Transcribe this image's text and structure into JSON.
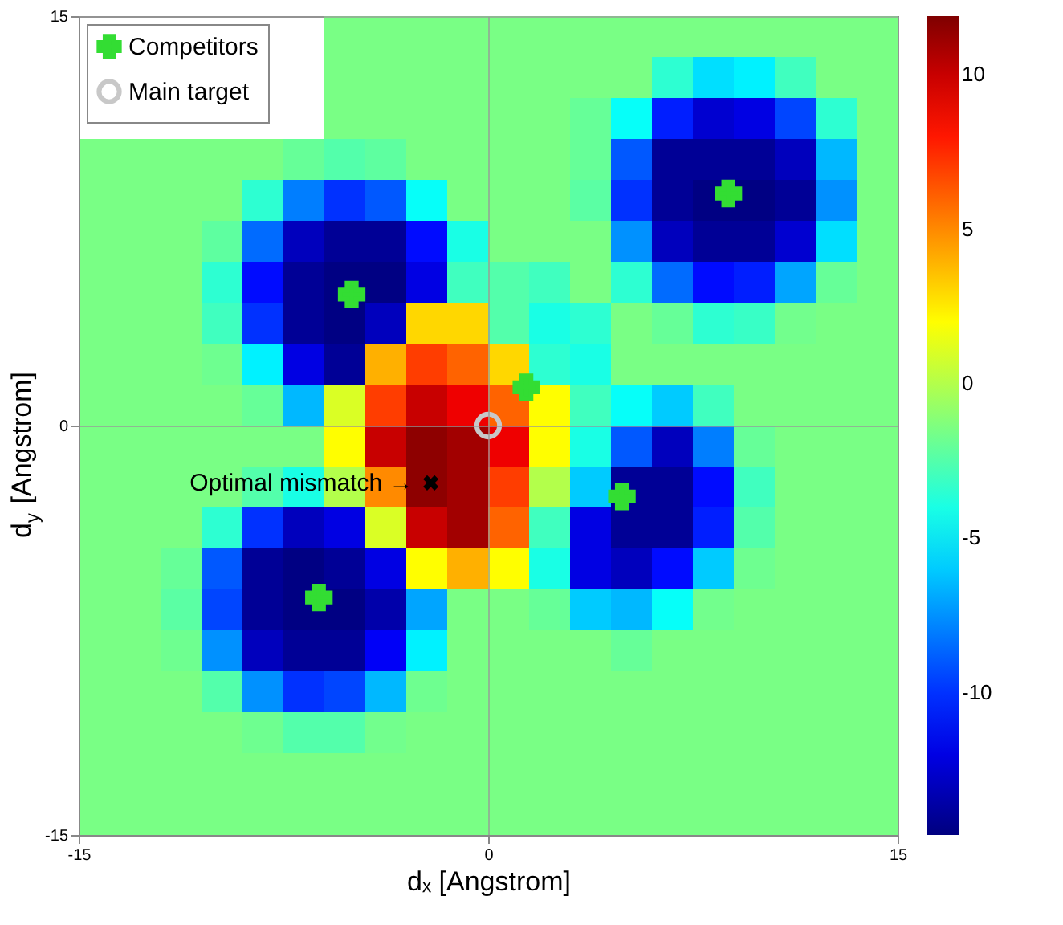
{
  "chart_data": {
    "type": "heatmap",
    "xlabel": "dₓ [Angstrom]",
    "ylabel": "d$_{y}$ [Angstrom]",
    "xlim": [
      -15,
      15
    ],
    "ylim": [
      -15,
      15
    ],
    "xticks": [
      -15,
      0,
      15
    ],
    "yticks": [
      -15,
      0,
      15
    ],
    "grid": true,
    "clim": [
      -14.6,
      11.9
    ],
    "cticks": [
      -10,
      -5,
      0,
      5,
      10
    ],
    "cells": [
      [
        null,
        null,
        null,
        null,
        null,
        null,
        -1.5,
        -1.5,
        -1.5,
        -1.5,
        -1.5,
        -1.5,
        -1.5,
        -1.5,
        -1.5,
        -1.5,
        -1.5,
        -1.5,
        -1.5,
        -1.5
      ],
      [
        null,
        null,
        null,
        null,
        null,
        null,
        -1.5,
        -1.5,
        -1.5,
        -1.5,
        -1.5,
        -1.5,
        -1.5,
        -1.5,
        -3.5,
        -5.5,
        -5,
        -3,
        -1.5,
        -1.5
      ],
      [
        null,
        null,
        null,
        null,
        null,
        null,
        -1.5,
        -1.5,
        -1.5,
        -1.5,
        -1.5,
        -1.5,
        -2,
        -4.5,
        -10.5,
        -12.5,
        -12,
        -9.5,
        -3.5,
        -1.5
      ],
      [
        -1.5,
        -1.5,
        -1.5,
        -1.5,
        -1.5,
        -2,
        -2.5,
        -2.2,
        -1.5,
        -1.5,
        -1.5,
        -1.5,
        -2,
        -9,
        -14,
        -14,
        -14,
        -13,
        -6.5,
        -1.5
      ],
      [
        -1.5,
        -1.5,
        -1.5,
        -1.5,
        -3.5,
        -8,
        -10,
        -9,
        -4.5,
        -1.5,
        -1.5,
        -1.5,
        -2.3,
        -10,
        -14,
        -14.5,
        -14.5,
        -14,
        -7.5,
        -1.5
      ],
      [
        -1.5,
        -1.5,
        -1.5,
        -2.2,
        -8.5,
        -13,
        -14,
        -14,
        -11,
        -4,
        -1.5,
        -1.5,
        -1.5,
        -7.5,
        -13,
        -14,
        -14,
        -12.5,
        -5.5,
        -1.5
      ],
      [
        -1.5,
        -1.5,
        -1.5,
        -3.5,
        -11,
        -14,
        -14.5,
        -14.5,
        -12,
        -3,
        -2.5,
        -3,
        -1.5,
        -3.5,
        -8.5,
        -11,
        -10.5,
        -7,
        -2,
        -1.5
      ],
      [
        -1.5,
        -1.5,
        -1.5,
        -3,
        -10,
        -14,
        -14.5,
        -13,
        3,
        3,
        -2.5,
        -4,
        -3.5,
        -1.5,
        -2,
        -3.5,
        -3.2,
        -1.7,
        -1.5,
        -1.5
      ],
      [
        -1.5,
        -1.5,
        -1.5,
        -1.8,
        -5,
        -12,
        -14,
        4,
        7,
        6,
        3,
        -3.5,
        -4,
        -1.5,
        -1.5,
        -1.5,
        -1.5,
        -1.5,
        -1.5,
        -1.5
      ],
      [
        -1.5,
        -1.5,
        -1.5,
        -1.5,
        -2,
        -6.5,
        1,
        7,
        10,
        9,
        6,
        2,
        -3,
        -4.5,
        -6,
        -3,
        -1.5,
        -1.5,
        -1.5,
        -1.5
      ],
      [
        -1.5,
        -1.5,
        -1.5,
        -1.5,
        -1.5,
        -1.5,
        2,
        10,
        11.5,
        11,
        9,
        2,
        -4,
        -9,
        -13,
        -8,
        -2,
        -1.5,
        -1.5,
        -1.5
      ],
      [
        -1.5,
        -1.5,
        -1.5,
        -1.5,
        -2.5,
        -4,
        0,
        5,
        11.5,
        11,
        7,
        0,
        -6,
        -14,
        -14,
        -11,
        -3,
        -1.5,
        -1.5,
        -1.5
      ],
      [
        -1.5,
        -1.5,
        -1.5,
        -3.5,
        -10,
        -13,
        -12,
        1,
        10,
        11,
        6,
        -3,
        -12,
        -14,
        -14,
        -10.5,
        -2.5,
        -1.5,
        -1.5,
        -1.5
      ],
      [
        -1.5,
        -1.5,
        -2,
        -9,
        -14,
        -14.5,
        -14,
        -12,
        2,
        4,
        2,
        -4,
        -12,
        -13,
        -11,
        -6,
        -1.8,
        -1.5,
        -1.5,
        -1.5
      ],
      [
        -1.5,
        -1.5,
        -2.3,
        -9.5,
        -14,
        -14.5,
        -14.5,
        -13.5,
        -7,
        -1.5,
        -1.5,
        -2,
        -6,
        -6.5,
        -4.5,
        -1.7,
        -1.5,
        -1.5,
        -1.5,
        -1.5
      ],
      [
        -1.5,
        -1.5,
        -1.8,
        -7.5,
        -13,
        -14,
        -14,
        -11.5,
        -5,
        -1.5,
        -1.5,
        -1.5,
        -1.5,
        -2,
        -1.5,
        -1.5,
        -1.5,
        -1.5,
        -1.5,
        -1.5
      ],
      [
        -1.5,
        -1.5,
        -1.5,
        -2.5,
        -7.5,
        -10,
        -9.5,
        -6.5,
        -1.8,
        -1.5,
        -1.5,
        -1.5,
        -1.5,
        -1.5,
        -1.5,
        -1.5,
        -1.5,
        -1.5,
        -1.5,
        -1.5
      ],
      [
        -1.5,
        -1.5,
        -1.5,
        -1.5,
        -1.8,
        -2.5,
        -2.5,
        -1.7,
        -1.5,
        -1.5,
        -1.5,
        -1.5,
        -1.5,
        -1.5,
        -1.5,
        -1.5,
        -1.5,
        -1.5,
        -1.5,
        -1.5
      ],
      [
        -1.5,
        -1.5,
        -1.5,
        -1.5,
        -1.5,
        -1.5,
        -1.5,
        -1.5,
        -1.5,
        -1.5,
        -1.5,
        -1.5,
        -1.5,
        -1.5,
        -1.5,
        -1.5,
        -1.5,
        -1.5,
        -1.5,
        -1.5
      ],
      [
        -1.5,
        -1.5,
        -1.5,
        -1.5,
        -1.5,
        -1.5,
        -1.5,
        -1.5,
        -1.5,
        -1.5,
        -1.5,
        -1.5,
        -1.5,
        -1.5,
        -1.5,
        -1.5,
        -1.5,
        -1.5,
        -1.5,
        -1.5
      ]
    ],
    "series": [
      {
        "name": "Competitors",
        "type": "scatter",
        "marker": "cross",
        "color": "#33dd33",
        "x": [
          8.8,
          -5.0,
          1.4,
          4.9,
          -6.2
        ],
        "values": [
          8.5,
          4.8,
          1.4,
          -2.6,
          -6.3
        ]
      },
      {
        "name": "Main target",
        "type": "scatter",
        "marker": "circle",
        "color": "#c8c8c8",
        "x": [
          0
        ],
        "values": [
          0
        ]
      },
      {
        "type": "scatter",
        "marker": "x",
        "color": "#000000",
        "x": [
          -2.1
        ],
        "values": [
          -2.1
        ]
      }
    ],
    "legend": "top left",
    "annotations": [
      {
        "text": "Optimal mismatch →",
        "x": -2.1,
        "y": -2.1
      }
    ]
  }
}
